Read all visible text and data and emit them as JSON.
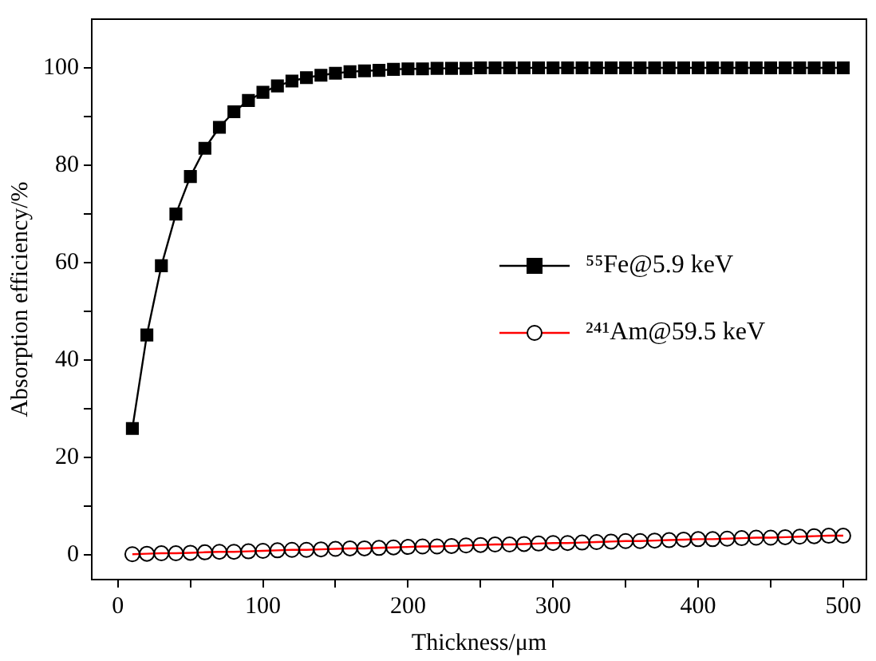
{
  "chart_data": {
    "type": "line",
    "xlabel": "Thickness/μm",
    "ylabel": "Absorption efficiency/%",
    "x": [
      10,
      20,
      30,
      40,
      50,
      60,
      70,
      80,
      90,
      100,
      110,
      120,
      130,
      140,
      150,
      160,
      170,
      180,
      190,
      200,
      210,
      220,
      230,
      240,
      250,
      260,
      270,
      280,
      290,
      300,
      310,
      320,
      330,
      340,
      350,
      360,
      370,
      380,
      390,
      400,
      410,
      420,
      430,
      440,
      450,
      460,
      470,
      480,
      490,
      500
    ],
    "series": [
      {
        "name": "⁵⁵Fe@5.9 keV",
        "color": "#000000",
        "marker": "square",
        "values": [
          26,
          45.2,
          59.4,
          70,
          77.7,
          83.5,
          87.8,
          91,
          93.3,
          95,
          96.3,
          97.3,
          98,
          98.5,
          98.9,
          99.2,
          99.4,
          99.5,
          99.7,
          99.8,
          99.8,
          99.9,
          99.9,
          99.9,
          100,
          100,
          100,
          100,
          100,
          100,
          100,
          100,
          100,
          100,
          100,
          100,
          100,
          100,
          100,
          100,
          100,
          100,
          100,
          100,
          100,
          100,
          100,
          100,
          100,
          100
        ]
      },
      {
        "name": "²⁴¹Am@59.5 keV",
        "color": "#ff0000",
        "marker": "circle",
        "values": [
          0.2,
          0.3,
          0.4,
          0.4,
          0.5,
          0.6,
          0.7,
          0.7,
          0.8,
          0.9,
          1.0,
          1.1,
          1.1,
          1.2,
          1.3,
          1.4,
          1.4,
          1.5,
          1.6,
          1.7,
          1.8,
          1.8,
          1.9,
          2.0,
          2.1,
          2.2,
          2.2,
          2.3,
          2.4,
          2.5,
          2.5,
          2.6,
          2.7,
          2.8,
          2.9,
          2.9,
          3.0,
          3.1,
          3.2,
          3.3,
          3.3,
          3.4,
          3.5,
          3.6,
          3.6,
          3.7,
          3.8,
          3.9,
          4.0,
          4.0
        ]
      }
    ],
    "xlim": [
      -18,
      516
    ],
    "ylim": [
      -5,
      110
    ],
    "xticks": [
      0,
      {
        "value": 50,
        "label": null
      },
      100,
      {
        "value": 150,
        "label": null
      },
      200,
      {
        "value": 250,
        "label": null
      },
      300,
      {
        "value": 350,
        "label": null
      },
      400,
      {
        "value": 450,
        "label": null
      },
      500
    ],
    "yticks": [
      0,
      {
        "value": 10,
        "label": null
      },
      20,
      {
        "value": 30,
        "label": null
      },
      40,
      {
        "value": 50,
        "label": null
      },
      60,
      {
        "value": 70,
        "label": null
      },
      80,
      {
        "value": 90,
        "label": null
      },
      100
    ],
    "grid": false,
    "legend": "right",
    "line_style": "solid"
  }
}
